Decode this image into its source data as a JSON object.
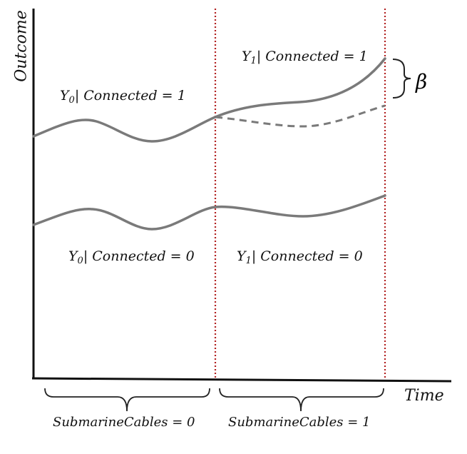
{
  "diagram": {
    "axes": {
      "y_label": "Outcome",
      "x_label": "Time"
    },
    "curve_labels": {
      "top_left": {
        "var": "Y",
        "sub": "0",
        "text": "| Connected = 1"
      },
      "top_right": {
        "var": "Y",
        "sub": "1",
        "text": "| Connected = 1"
      },
      "bottom_left": {
        "var": "Y",
        "sub": "0",
        "text": "| Connected = 0"
      },
      "bottom_right": {
        "var": "Y",
        "sub": "1",
        "text": "| Connected = 0"
      }
    },
    "effect_label": "β",
    "period_labels": {
      "left": "SubmarineCables = 0",
      "right": "SubmarineCables = 1"
    },
    "colors": {
      "curve": "#7a7a7a",
      "axis": "#111111",
      "divider": "#b22222",
      "brace": "#222222"
    }
  }
}
